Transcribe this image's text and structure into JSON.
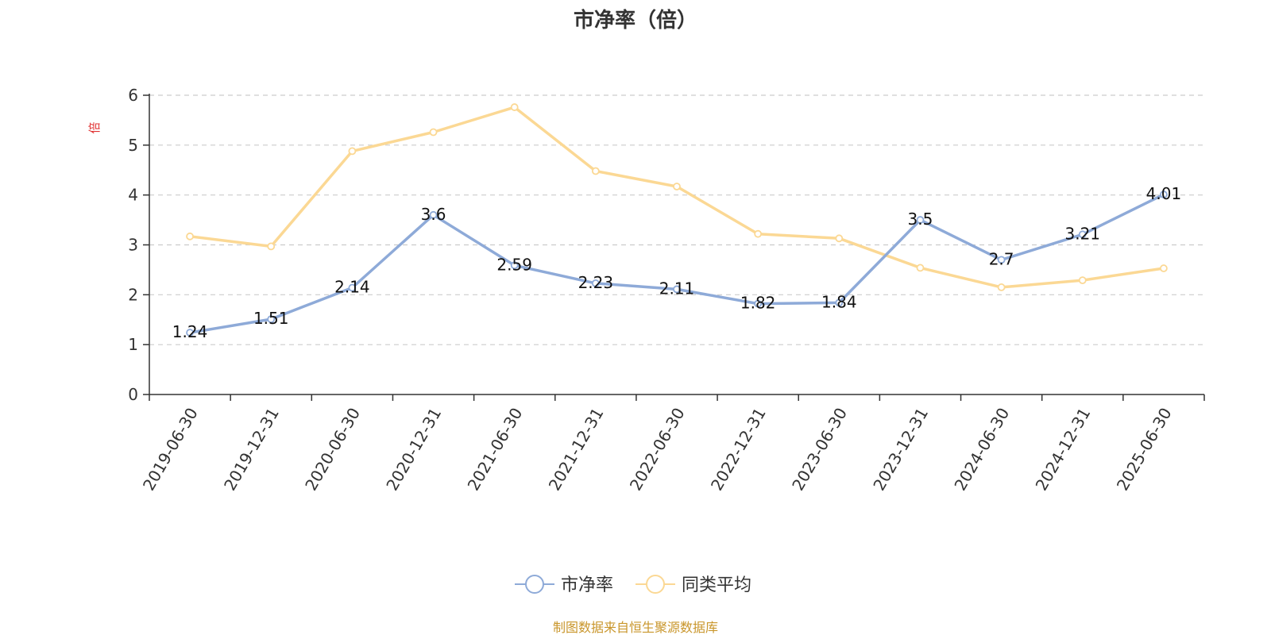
{
  "chart_data": {
    "type": "line",
    "title": "市净率（倍）",
    "ylabel": "倍",
    "ylim": [
      0,
      6
    ],
    "yticks": [
      0,
      1,
      2,
      3,
      4,
      5,
      6
    ],
    "grid": true,
    "legend_position": "bottom",
    "categories": [
      "2019-06-30",
      "2019-12-31",
      "2020-06-30",
      "2020-12-31",
      "2021-06-30",
      "2021-12-31",
      "2022-06-30",
      "2022-12-31",
      "2023-06-30",
      "2023-12-31",
      "2024-06-30",
      "2024-12-31",
      "2025-06-30"
    ],
    "series": [
      {
        "name": "市净率",
        "color": "#8eaad8",
        "values": [
          1.24,
          1.51,
          2.14,
          3.6,
          2.59,
          2.23,
          2.11,
          1.82,
          1.84,
          3.5,
          2.7,
          3.21,
          4.01
        ],
        "labels": [
          "1.24",
          "1.51",
          "2.14",
          "3.6",
          "2.59",
          "2.23",
          "2.11",
          "1.82",
          "1.84",
          "3.5",
          "2.7",
          "3.21",
          "4.01"
        ]
      },
      {
        "name": "同类平均",
        "color": "#fbd894",
        "values": [
          3.17,
          2.97,
          4.88,
          5.26,
          5.76,
          4.48,
          4.17,
          3.22,
          3.13,
          2.54,
          2.15,
          2.29,
          2.53
        ]
      }
    ],
    "source": "制图数据来自恒生聚源数据库",
    "unit_color": "#e03131",
    "source_color": "#c9962b",
    "axis_color": "#333333",
    "grid_color": "#cccccc"
  }
}
